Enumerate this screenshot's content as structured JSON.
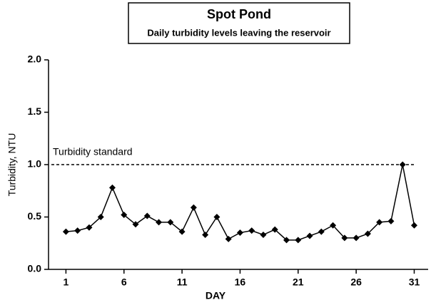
{
  "chart_data": {
    "type": "line",
    "title": "Spot Pond",
    "subtitle": "Daily turbidity levels leaving the reservoir",
    "xlabel": "DAY",
    "ylabel": "Turbidity, NTU",
    "x": [
      1,
      2,
      3,
      4,
      5,
      6,
      7,
      8,
      9,
      10,
      11,
      12,
      13,
      14,
      15,
      16,
      17,
      18,
      19,
      20,
      21,
      22,
      23,
      24,
      25,
      26,
      27,
      28,
      29,
      30,
      31
    ],
    "series": [
      {
        "name": "Turbidity",
        "color": "#000000",
        "values": [
          0.36,
          0.37,
          0.4,
          0.5,
          0.78,
          0.52,
          0.43,
          0.51,
          0.45,
          0.45,
          0.36,
          0.59,
          0.33,
          0.5,
          0.29,
          0.35,
          0.37,
          0.33,
          0.38,
          0.28,
          0.28,
          0.32,
          0.36,
          0.42,
          0.3,
          0.3,
          0.34,
          0.45,
          0.46,
          1.0,
          0.42
        ]
      }
    ],
    "reference_lines": [
      {
        "value": 1.0,
        "label": "Turbidity standard"
      }
    ],
    "xlim": [
      -0.5,
      32.2
    ],
    "xticks": [
      1,
      6,
      11,
      16,
      21,
      26,
      31
    ],
    "ylim": [
      0,
      2.0
    ],
    "yticks": [
      {
        "value": 0,
        "label": "0.0"
      },
      {
        "value": 0.5,
        "label": "0.5"
      },
      {
        "value": 1.0,
        "label": "1.0"
      },
      {
        "value": 1.5,
        "label": "1.5"
      },
      {
        "value": 2.0,
        "label": "2.0"
      }
    ],
    "grid": false
  }
}
